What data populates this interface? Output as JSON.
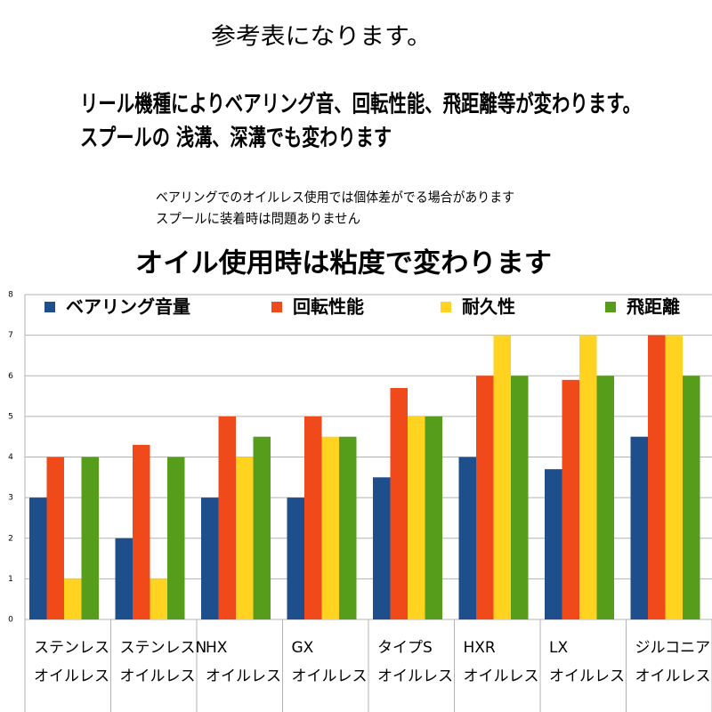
{
  "heading": "参考表になります。",
  "notes": [
    "リール機種によりベアリング音、回転性能、飛距離等が変わります。",
    "スプールの 浅溝、深溝でも変わります"
  ],
  "small_notes": [
    "ベアリングでのオイルレス使用では個体差がでる場合があります",
    "スプールに装着時は問題ありません"
  ],
  "chart_data": {
    "type": "bar",
    "title": "オイル使用時は粘度で変わります",
    "categories": [
      [
        "ステンレス",
        "オイルレス"
      ],
      [
        "ステンレスN",
        "オイルレス"
      ],
      [
        "HX",
        "オイルレス"
      ],
      [
        "GX",
        "オイルレス"
      ],
      [
        "タイプS",
        "オイルレス"
      ],
      [
        "HXR",
        "オイルレス"
      ],
      [
        "LX",
        "オイルレス"
      ],
      [
        "ジルコニア",
        "オイルレス"
      ]
    ],
    "series": [
      {
        "name": "ベアリング音量",
        "color": "#1f4e8c",
        "values": [
          3,
          2,
          3,
          3,
          3.5,
          4,
          3.7,
          4.5
        ]
      },
      {
        "name": "回転性能",
        "color": "#f04a1a",
        "values": [
          4,
          4.3,
          5,
          5,
          5.7,
          6,
          5.9,
          7
        ]
      },
      {
        "name": "耐久性",
        "color": "#ffd320",
        "values": [
          1,
          1,
          4,
          4.5,
          5,
          7,
          7,
          7
        ]
      },
      {
        "name": "飛距離",
        "color": "#579d1c",
        "values": [
          4,
          4,
          4.5,
          4.5,
          5,
          6,
          6,
          6
        ]
      }
    ],
    "ylim": [
      0,
      8
    ],
    "yticks": [
      0,
      1,
      2,
      3,
      4,
      5,
      6,
      7,
      8
    ],
    "grid": true,
    "legend": "top"
  }
}
